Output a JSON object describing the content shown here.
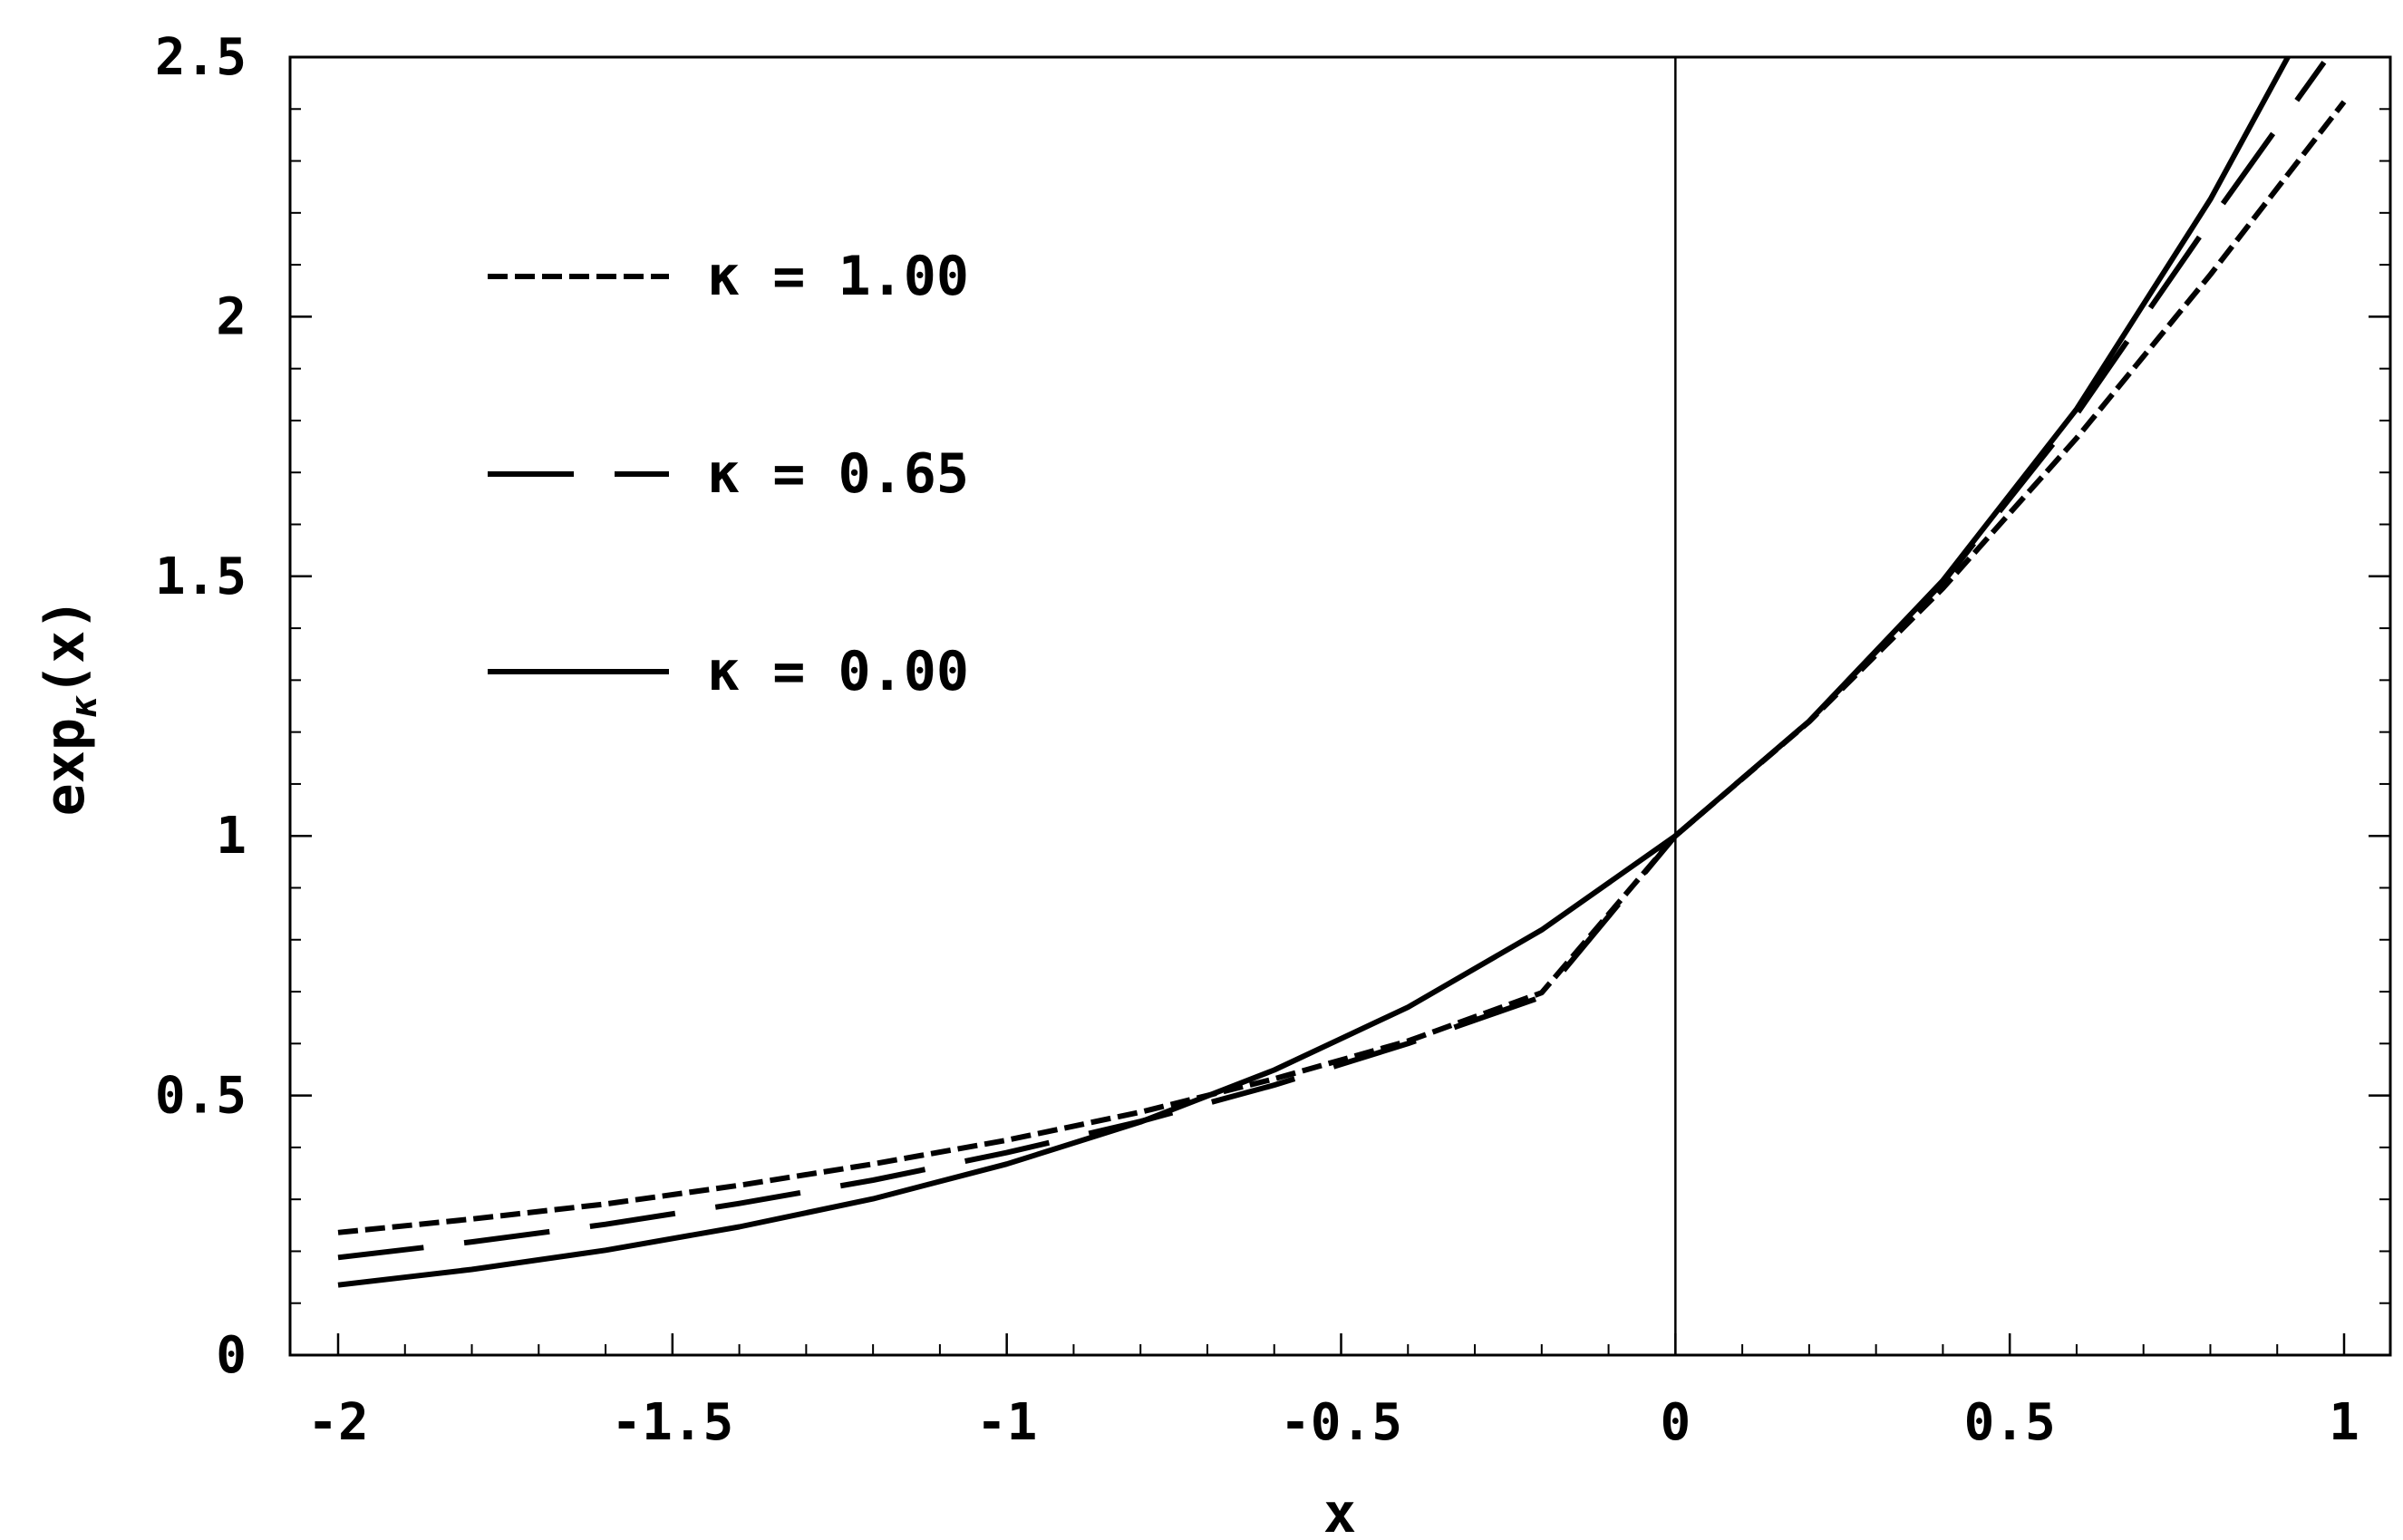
{
  "chart_data": {
    "type": "line",
    "title": "",
    "xlabel": "x",
    "ylabel_main": "exp",
    "ylabel_subscript": "κ",
    "ylabel_arg": "(x)",
    "xlim": [
      -2,
      1
    ],
    "ylim": [
      0,
      2.5
    ],
    "x_ticks": [
      -2,
      -1.5,
      -1,
      -0.5,
      0,
      0.5,
      1
    ],
    "x_tick_labels": [
      "-2",
      "-1.5",
      "-1",
      "-0.5",
      "0",
      "0.5",
      "1"
    ],
    "y_ticks": [
      0,
      0.5,
      1,
      1.5,
      2,
      2.5
    ],
    "y_tick_labels": [
      "0",
      "0.5",
      "1",
      "1.5",
      "2",
      "2.5"
    ],
    "vertical_reference_x": 0,
    "legend_position": "upper-left",
    "series": [
      {
        "name": "κ = 1.00",
        "kappa": 1.0,
        "style": "dotted",
        "x": [
          -2.0,
          -1.8,
          -1.6,
          -1.4,
          -1.2,
          -1.0,
          -0.8,
          -0.6,
          -0.4,
          -0.2,
          0.0,
          0.2,
          0.4,
          0.6,
          0.8,
          1.0
        ],
        "y": [
          0.236,
          0.262,
          0.291,
          0.327,
          0.368,
          0.414,
          0.468,
          0.532,
          0.605,
          0.698,
          1.0,
          1.22,
          1.477,
          1.766,
          2.081,
          2.414
        ]
      },
      {
        "name": "κ = 0.65",
        "kappa": 0.65,
        "style": "dashed",
        "x": [
          -2.0,
          -1.8,
          -1.6,
          -1.4,
          -1.2,
          -1.0,
          -0.8,
          -0.6,
          -0.4,
          -0.2,
          0.0,
          0.2,
          0.4,
          0.6,
          0.8,
          0.97
        ],
        "y": [
          0.188,
          0.218,
          0.252,
          0.292,
          0.337,
          0.39,
          0.45,
          0.52,
          0.6,
          0.69,
          1.0,
          1.221,
          1.488,
          1.812,
          2.184,
          2.49
        ]
      },
      {
        "name": "κ = 0.00",
        "kappa": 0.0,
        "style": "solid",
        "x": [
          -2.0,
          -1.8,
          -1.6,
          -1.4,
          -1.2,
          -1.0,
          -0.8,
          -0.6,
          -0.4,
          -0.2,
          0.0,
          0.2,
          0.4,
          0.6,
          0.8,
          0.916
        ],
        "y": [
          0.135,
          0.165,
          0.202,
          0.247,
          0.301,
          0.368,
          0.449,
          0.549,
          0.67,
          0.819,
          1.0,
          1.221,
          1.492,
          1.822,
          2.226,
          2.5
        ]
      }
    ]
  }
}
